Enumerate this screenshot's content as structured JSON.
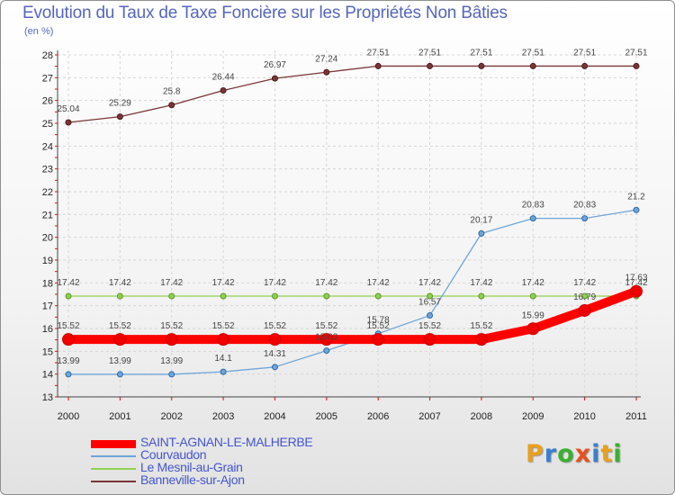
{
  "title": "Evolution du Taux de Taxe Foncière sur les Propriétés Non Bâties",
  "unit": "(en %)",
  "logo": {
    "text": "Proxiti",
    "colors": [
      "#e8a020",
      "#3a7fd0",
      "#3ab030",
      "#e85020",
      "#3a7fd0",
      "#e8a020",
      "#3ab030"
    ]
  },
  "chart_data": {
    "type": "line",
    "title": "Evolution du Taux de Taxe Foncière sur les Propriétés Non Bâties",
    "ylabel": "(en %)",
    "xlabel": "",
    "ylim": [
      13,
      28
    ],
    "yticks": [
      13,
      14,
      15,
      16,
      17,
      18,
      19,
      20,
      21,
      22,
      23,
      24,
      25,
      26,
      27,
      28
    ],
    "categories": [
      "2000",
      "2001",
      "2002",
      "2003",
      "2004",
      "2005",
      "2006",
      "2007",
      "2008",
      "2009",
      "2010",
      "2011"
    ],
    "series": [
      {
        "name": "SAINT-AGNAN-LE-MALHERBE",
        "color": "#ff0000",
        "labels": [
          "15.52",
          "15.52",
          "15.52",
          "15.52",
          "15.52",
          "15.52",
          "15.52",
          "15.52",
          "15.52",
          "15.99",
          "16.79",
          "17.63"
        ],
        "values": [
          15.52,
          15.52,
          15.52,
          15.52,
          15.52,
          15.52,
          15.52,
          15.52,
          15.52,
          15.99,
          16.79,
          17.63
        ]
      },
      {
        "name": "Courvaudon",
        "color": "#6fa5d8",
        "labels": [
          "13.99",
          "13.99",
          "13.99",
          "14.1",
          "14.31",
          "15.03",
          "15.78",
          "16.57",
          "20.17",
          "20.83",
          "20.83",
          "21.2"
        ],
        "values": [
          13.99,
          13.99,
          13.99,
          14.1,
          14.31,
          15.03,
          15.78,
          16.57,
          20.17,
          20.83,
          20.83,
          21.2
        ]
      },
      {
        "name": "Le Mesnil-au-Grain",
        "color": "#8fd04f",
        "labels": [
          "17.42",
          "17.42",
          "17.42",
          "17.42",
          "17.42",
          "17.42",
          "17.42",
          "17.42",
          "17.42",
          "17.42",
          "17.42",
          "17.42"
        ],
        "values": [
          17.42,
          17.42,
          17.42,
          17.42,
          17.42,
          17.42,
          17.42,
          17.42,
          17.42,
          17.42,
          17.42,
          17.42
        ]
      },
      {
        "name": "Banneville-sur-Ajon",
        "color": "#7a3535",
        "labels": [
          "25.04",
          "25.29",
          "25.8",
          "26.44",
          "26.97",
          "27.24",
          "27.51",
          "27.51",
          "27.51",
          "27.51",
          "27.51",
          "27.51"
        ],
        "values": [
          25.04,
          25.29,
          25.8,
          26.44,
          26.97,
          27.24,
          27.51,
          27.51,
          27.51,
          27.51,
          27.51,
          27.51
        ]
      }
    ],
    "grid": true,
    "legend": "bottom-left"
  }
}
